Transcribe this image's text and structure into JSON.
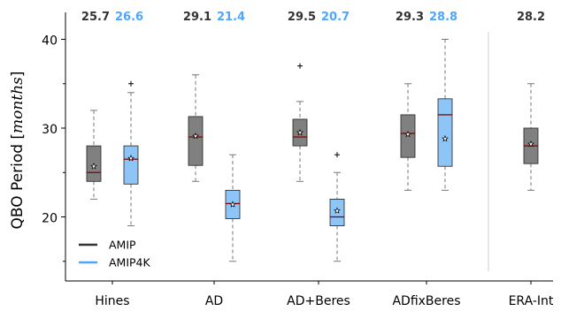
{
  "chart_data": {
    "type": "box",
    "ylabel": "QBO Period",
    "ylabel_unit": "months",
    "ylim": [
      14,
      41.5
    ],
    "yticks": [
      20,
      30,
      40
    ],
    "categories": [
      "Hines",
      "AD",
      "AD+Beres",
      "ADfixBeres",
      "ERA-Int"
    ],
    "legend": {
      "placement": "lower-left",
      "entries": [
        {
          "name": "AMIP",
          "color": "#333333"
        },
        {
          "name": "AMIP4K",
          "color": "#4da6ff"
        }
      ]
    },
    "separator_before": "ERA-Int",
    "colors": {
      "amip_fill": "#808080",
      "amip_label": "#333333",
      "amip4k_fill": "#8ec5f7",
      "amip4k_label": "#4da6ff",
      "median_line": "#8b0000",
      "edge": "#222222"
    },
    "series": [
      {
        "name": "AMIP",
        "boxes": [
          {
            "category": "Hines",
            "whisker_low": 22,
            "q1": 24,
            "median": 25,
            "q3": 28,
            "whisker_high": 32,
            "mean": 25.7,
            "outliers": [],
            "mean_label": "25.7"
          },
          {
            "category": "AD",
            "whisker_low": 24,
            "q1": 25.8,
            "median": 29,
            "q3": 31.3,
            "whisker_high": 36,
            "mean": 29.1,
            "outliers": [],
            "mean_label": "29.1"
          },
          {
            "category": "AD+Beres",
            "whisker_low": 24,
            "q1": 28,
            "median": 29,
            "q3": 31,
            "whisker_high": 33,
            "mean": 29.5,
            "outliers": [
              37
            ],
            "mean_label": "29.5"
          },
          {
            "category": "ADfixBeres",
            "whisker_low": 23,
            "q1": 26.7,
            "median": 29.4,
            "q3": 31.5,
            "whisker_high": 35,
            "mean": 29.3,
            "outliers": [],
            "mean_label": "29.3"
          },
          {
            "category": "ERA-Int",
            "whisker_low": 23,
            "q1": 26,
            "median": 28,
            "q3": 30,
            "whisker_high": 35,
            "mean": 28.2,
            "outliers": [],
            "mean_label": "28.2"
          }
        ]
      },
      {
        "name": "AMIP4K",
        "boxes": [
          {
            "category": "Hines",
            "whisker_low": 19,
            "q1": 23.7,
            "median": 26.5,
            "q3": 28,
            "whisker_high": 34,
            "mean": 26.6,
            "outliers": [
              35
            ],
            "mean_label": "26.6"
          },
          {
            "category": "AD",
            "whisker_low": 15,
            "q1": 19.8,
            "median": 21.5,
            "q3": 23,
            "whisker_high": 27,
            "mean": 21.4,
            "outliers": [],
            "mean_label": "21.4"
          },
          {
            "category": "AD+Beres",
            "whisker_low": 15,
            "q1": 19,
            "median": 20,
            "q3": 22,
            "whisker_high": 25,
            "mean": 20.7,
            "outliers": [
              27
            ],
            "mean_label": "20.7"
          },
          {
            "category": "ADfixBeres",
            "whisker_low": 23,
            "q1": 25.7,
            "median": 31.5,
            "q3": 33.3,
            "whisker_high": 40,
            "mean": 28.8,
            "outliers": [],
            "mean_label": "28.8"
          }
        ]
      }
    ]
  }
}
